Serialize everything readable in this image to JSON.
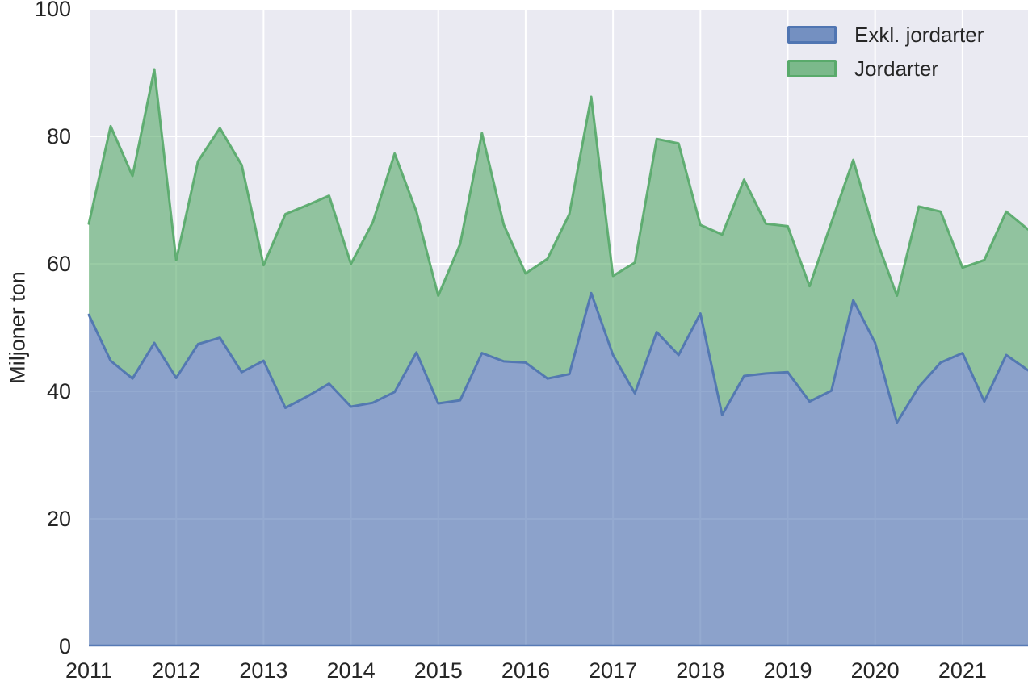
{
  "chart_data": {
    "type": "area",
    "stacked": true,
    "title": "",
    "ylabel": "Miljoner ton",
    "xlabel": "",
    "ylim": [
      0,
      100
    ],
    "yticks": [
      0,
      20,
      40,
      60,
      80,
      100
    ],
    "xticks": [
      2011,
      2012,
      2013,
      2014,
      2015,
      2016,
      2017,
      2018,
      2019,
      2020,
      2021
    ],
    "xlim": [
      2011.0,
      2021.75
    ],
    "x_unit": "quarterly",
    "x": [
      2011.0,
      2011.25,
      2011.5,
      2011.75,
      2012.0,
      2012.25,
      2012.5,
      2012.75,
      2013.0,
      2013.25,
      2013.5,
      2013.75,
      2014.0,
      2014.25,
      2014.5,
      2014.75,
      2015.0,
      2015.25,
      2015.5,
      2015.75,
      2016.0,
      2016.25,
      2016.5,
      2016.75,
      2017.0,
      2017.25,
      2017.5,
      2017.75,
      2018.0,
      2018.25,
      2018.5,
      2018.75,
      2019.0,
      2019.25,
      2019.5,
      2019.75,
      2020.0,
      2020.25,
      2020.5,
      2020.75,
      2021.0,
      2021.25,
      2021.5,
      2021.75
    ],
    "series": [
      {
        "name": "Exkl. jordarter",
        "color": "#4C72B0",
        "values": [
          52.0,
          44.8,
          42.0,
          47.6,
          42.1,
          47.4,
          48.4,
          43.0,
          44.8,
          37.4,
          39.2,
          41.2,
          37.6,
          38.2,
          39.9,
          46.1,
          38.1,
          38.6,
          46.0,
          44.7,
          44.5,
          42.0,
          42.7,
          55.4,
          45.7,
          39.7,
          49.3,
          45.7,
          52.2,
          36.3,
          42.4,
          42.8,
          43.0,
          38.4,
          40.1,
          54.3,
          47.6,
          35.1,
          40.7,
          44.5,
          46.0,
          38.4,
          45.7,
          43.3
        ]
      },
      {
        "name": "Jordarter",
        "color": "#55A868",
        "values": [
          14.3,
          36.8,
          31.8,
          42.9,
          18.5,
          28.7,
          32.9,
          32.5,
          15.0,
          30.4,
          30.0,
          29.5,
          22.4,
          28.3,
          37.4,
          22.1,
          16.9,
          24.5,
          34.5,
          21.4,
          14.0,
          18.8,
          25.1,
          30.8,
          12.4,
          20.5,
          30.3,
          33.2,
          13.9,
          28.3,
          30.8,
          23.5,
          22.9,
          18.1,
          26.4,
          22.0,
          16.8,
          19.9,
          28.3,
          23.7,
          13.4,
          22.2,
          22.5,
          22.1
        ]
      }
    ],
    "legend_position": "upper right",
    "grid": true,
    "plot_background": "#EAEAF2",
    "grid_color": "#FFFFFF",
    "text_color": "#262626",
    "fill_opacity": 0.6,
    "line_width": 3
  }
}
